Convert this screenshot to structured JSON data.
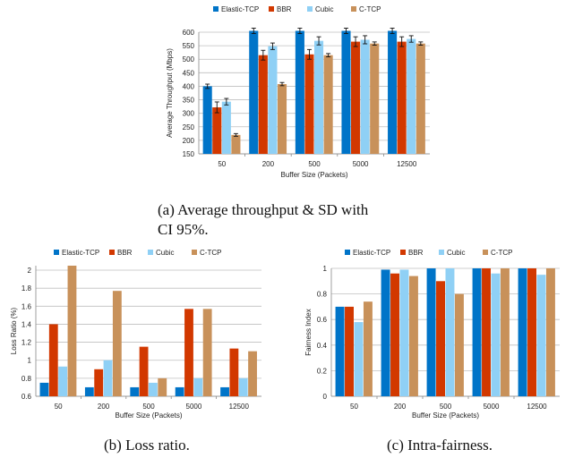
{
  "colors": {
    "Elastic-TCP": "#0074c8",
    "BBR": "#d23800",
    "Cubic": "#8fd0f5",
    "C-TCP": "#c8915a"
  },
  "legend": [
    "Elastic-TCP",
    "BBR",
    "Cubic",
    "C-TCP"
  ],
  "captions": {
    "a_line1": "(a)  Average  throughput  &  SD  with",
    "a_line2": "CI 95%.",
    "b": "(b)  Loss ratio.",
    "c": "(c)  Intra-fairness."
  },
  "chart_data": [
    {
      "type": "bar",
      "xlabel": "Buffer Size (Packets)",
      "ylabel": "Average Throughput (Mbps)",
      "ylim": [
        150,
        600
      ],
      "yticks": [
        "150",
        "200",
        "250",
        "300",
        "350",
        "400",
        "450",
        "500",
        "550",
        "600"
      ],
      "grid": true,
      "legend": "top",
      "categories": [
        "50",
        "200",
        "500",
        "5000",
        "12500"
      ],
      "series": [
        {
          "name": "Elastic-TCP",
          "values": [
            400,
            605,
            605,
            605,
            605
          ],
          "error": [
            8,
            10,
            10,
            10,
            10
          ]
        },
        {
          "name": "BBR",
          "values": [
            322,
            515,
            518,
            565,
            565
          ],
          "error": [
            20,
            18,
            18,
            18,
            18
          ]
        },
        {
          "name": "Cubic",
          "values": [
            343,
            548,
            568,
            572,
            575
          ],
          "error": [
            12,
            12,
            15,
            15,
            12
          ]
        },
        {
          "name": "C-TCP",
          "values": [
            220,
            408,
            515,
            558,
            558
          ],
          "error": [
            5,
            6,
            6,
            6,
            6
          ]
        }
      ]
    },
    {
      "type": "bar",
      "xlabel": "Buffer Size (Packets)",
      "ylabel": "Loss Ratio (%)",
      "ylim": [
        0.6,
        2.05
      ],
      "yticks": [
        "0.6",
        "0.8",
        "1",
        "1.2",
        "1.4",
        "1.6",
        "1.8",
        "2"
      ],
      "grid": true,
      "legend": "top",
      "categories": [
        "50",
        "200",
        "500",
        "5000",
        "12500"
      ],
      "series": [
        {
          "name": "Elastic-TCP",
          "values": [
            0.75,
            0.7,
            0.7,
            0.7,
            0.7
          ]
        },
        {
          "name": "BBR",
          "values": [
            1.4,
            0.9,
            1.15,
            1.57,
            1.13
          ]
        },
        {
          "name": "Cubic",
          "values": [
            0.93,
            1.0,
            0.75,
            0.8,
            0.8
          ]
        },
        {
          "name": "C-TCP",
          "values": [
            2.05,
            1.77,
            0.8,
            1.57,
            1.1
          ]
        }
      ]
    },
    {
      "type": "bar",
      "xlabel": "Buffer Size (Packets)",
      "ylabel": "Fairness Index",
      "ylim": [
        0,
        1.0
      ],
      "yticks": [
        "0",
        "0.2",
        "0.4",
        "0.6",
        "0.8",
        "1"
      ],
      "grid": true,
      "legend": "top",
      "categories": [
        "50",
        "200",
        "500",
        "5000",
        "12500"
      ],
      "series": [
        {
          "name": "Elastic-TCP",
          "values": [
            0.7,
            0.99,
            1.0,
            1.0,
            1.0
          ]
        },
        {
          "name": "BBR",
          "values": [
            0.7,
            0.96,
            0.9,
            1.0,
            1.0
          ]
        },
        {
          "name": "Cubic",
          "values": [
            0.58,
            0.99,
            1.0,
            0.96,
            0.95
          ]
        },
        {
          "name": "C-TCP",
          "values": [
            0.74,
            0.94,
            0.8,
            1.0,
            1.0
          ]
        }
      ]
    }
  ]
}
